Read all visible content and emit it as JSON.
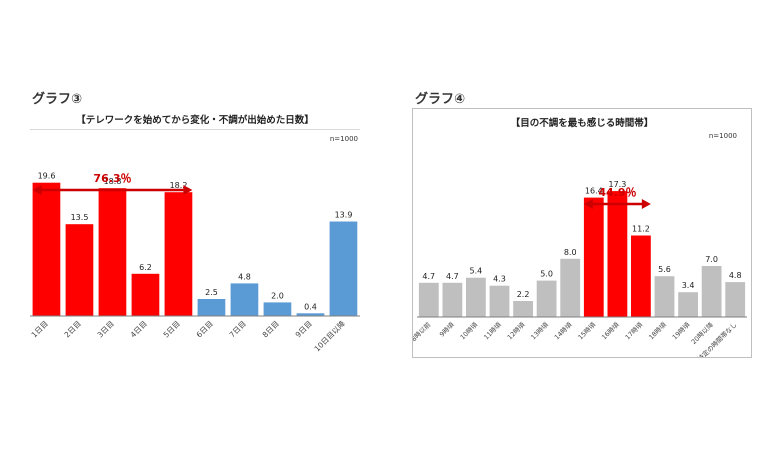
{
  "graph3": {
    "label": "グラフ③",
    "title": "【テレワークを始めてから変化・不調が出始めた日数】",
    "n_label": "n=1000",
    "highlight_label": "76.3％"
  },
  "graph4": {
    "label": "グラフ④",
    "title": "【目の不調を最も感じる時間帯】",
    "n_label": "n=1000",
    "highlight_label": "44.9％"
  },
  "chart_data": [
    {
      "type": "bar",
      "title": "【テレワークを始めてから変化・不調が出始めた日数】",
      "categories": [
        "1日目",
        "2日目",
        "3日目",
        "4日目",
        "5日目",
        "6日目",
        "7日目",
        "8日目",
        "9日目",
        "10日目以降"
      ],
      "values": [
        19.6,
        13.5,
        18.8,
        6.2,
        18.2,
        2.5,
        4.8,
        2.0,
        0.4,
        13.9
      ],
      "colors": [
        "#ff0000",
        "#ff0000",
        "#ff0000",
        "#ff0000",
        "#ff0000",
        "#5b9bd5",
        "#5b9bd5",
        "#5b9bd5",
        "#5b9bd5",
        "#5b9bd5"
      ],
      "annotation": {
        "text": "76.3％",
        "from_category": "1日目",
        "to_category": "5日目",
        "color": "#cc0000"
      },
      "ylim": [
        0,
        25
      ],
      "grid": false
    },
    {
      "type": "bar",
      "title": "【目の不調を最も感じる時間帯】",
      "categories": [
        "8時以前",
        "9時頃",
        "10時頃",
        "11時頃",
        "12時頃",
        "13時頃",
        "14時頃",
        "15時頃",
        "16時頃",
        "17時頃",
        "18時頃",
        "19時頃",
        "20時以降",
        "特定の時間帯なし"
      ],
      "values": [
        4.7,
        4.7,
        5.4,
        4.3,
        2.2,
        5.0,
        8.0,
        16.4,
        17.3,
        11.2,
        5.6,
        3.4,
        7.0,
        4.8
      ],
      "colors": [
        "#bfbfbf",
        "#bfbfbf",
        "#bfbfbf",
        "#bfbfbf",
        "#bfbfbf",
        "#bfbfbf",
        "#bfbfbf",
        "#ff0000",
        "#ff0000",
        "#ff0000",
        "#bfbfbf",
        "#bfbfbf",
        "#bfbfbf",
        "#bfbfbf"
      ],
      "annotation": {
        "text": "44.9％",
        "from_category": "15時頃",
        "to_category": "17時頃",
        "color": "#cc0000"
      },
      "ylim": [
        0,
        25
      ],
      "grid": false
    }
  ]
}
